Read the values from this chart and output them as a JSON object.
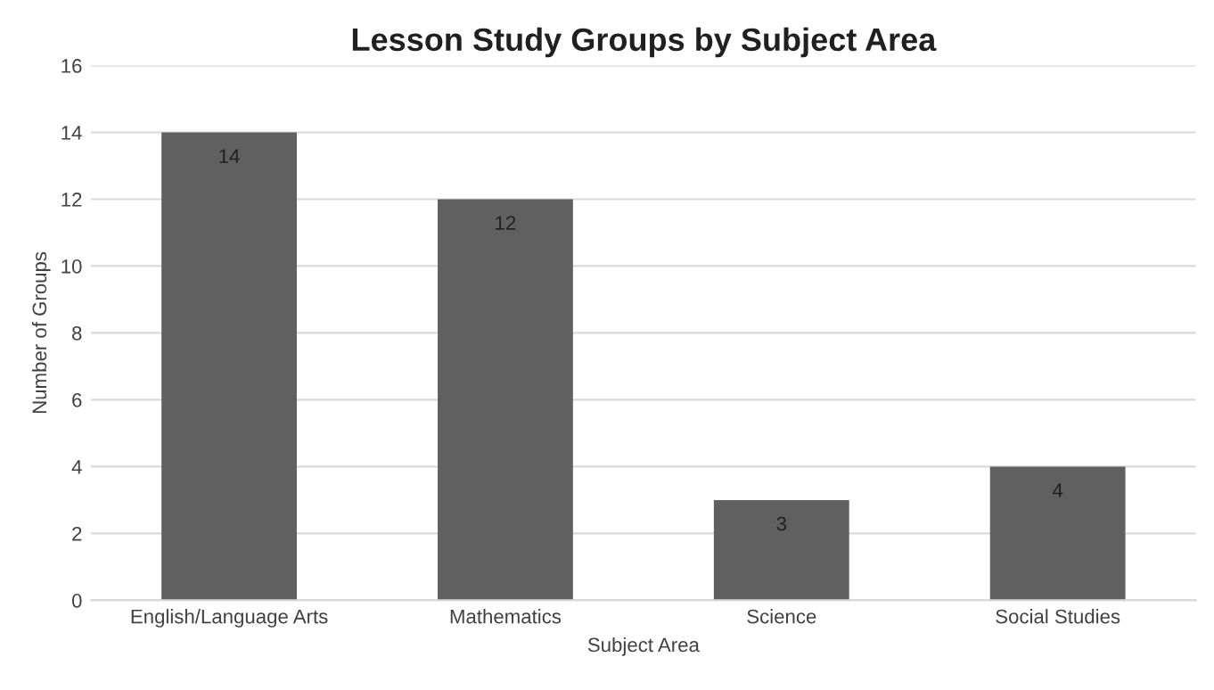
{
  "chart_data": {
    "type": "bar",
    "title": "Lesson Study Groups by Subject Area",
    "xlabel": "Subject Area",
    "ylabel": "Number of Groups",
    "categories": [
      "English/Language Arts",
      "Mathematics",
      "Science",
      "Social Studies"
    ],
    "values": [
      14,
      12,
      3,
      4
    ],
    "color": "#606060",
    "ylim": [
      0,
      16
    ],
    "yticks": [
      0,
      2,
      4,
      6,
      8,
      10,
      12,
      14,
      16
    ],
    "grid": "y",
    "data_labels": true,
    "legend": false
  }
}
